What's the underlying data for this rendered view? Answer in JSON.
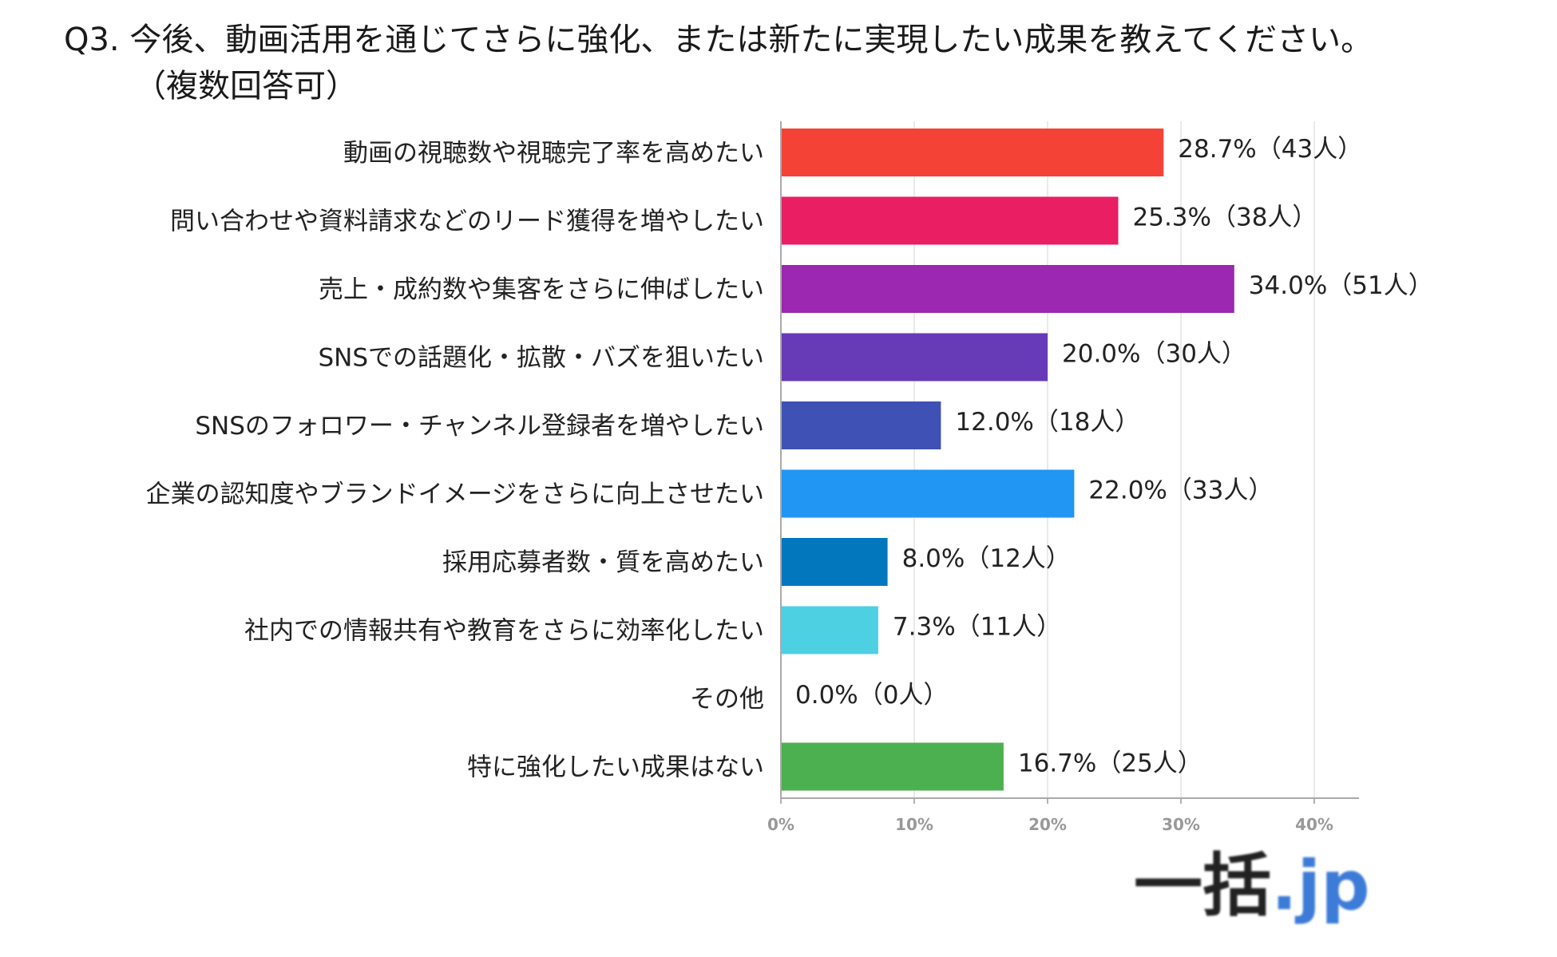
{
  "title": "Q3. 今後、動画活用を通じてさらに強化、または新たに実現したい成果を教えてください。",
  "subtitle": "（複数回答可）",
  "chart_data": {
    "type": "bar",
    "orientation": "horizontal",
    "categories": [
      "動画の視聴数や視聴完了率を高めたい",
      "問い合わせや資料請求などのリード獲得を増やしたい",
      "売上・成約数や集客をさらに伸ばしたい",
      "SNSでの話題化・拡散・バズを狙いたい",
      "SNSのフォロワー・チャンネル登録者を増やしたい",
      "企業の認知度やブランドイメージをさらに向上させたい",
      "採用応募者数・質を高めたい",
      "社内での情報共有や教育をさらに効率化したい",
      "その他",
      "特に強化したい成果はない"
    ],
    "values": [
      28.7,
      25.3,
      34.0,
      20.0,
      12.0,
      22.0,
      8.0,
      7.3,
      0.0,
      16.7
    ],
    "data_labels": [
      "28.7%（43人）",
      "25.3%（38人）",
      "34.0%（51人）",
      "20.0%（30人）",
      "12.0%（18人）",
      "22.0%（33人）",
      "8.0%（12人）",
      "7.3%（11人）",
      "0.0%（0人）",
      "16.7%（25人）"
    ],
    "colors": [
      "#f44336",
      "#e91e63",
      "#9c27b0",
      "#673ab7",
      "#3f51b5",
      "#2196f3",
      "#0277bd",
      "#4dd0e1",
      "#8bc34a",
      "#4caf50"
    ],
    "xlim": [
      0,
      43
    ],
    "xticks": [
      0,
      10,
      20,
      30,
      40
    ],
    "xtick_labels": [
      "0%",
      "10%",
      "20%",
      "30%",
      "40%"
    ],
    "grid": true,
    "xlabel": "",
    "ylabel": ""
  },
  "logo": {
    "main": "一括",
    "suffix": ".jp"
  }
}
